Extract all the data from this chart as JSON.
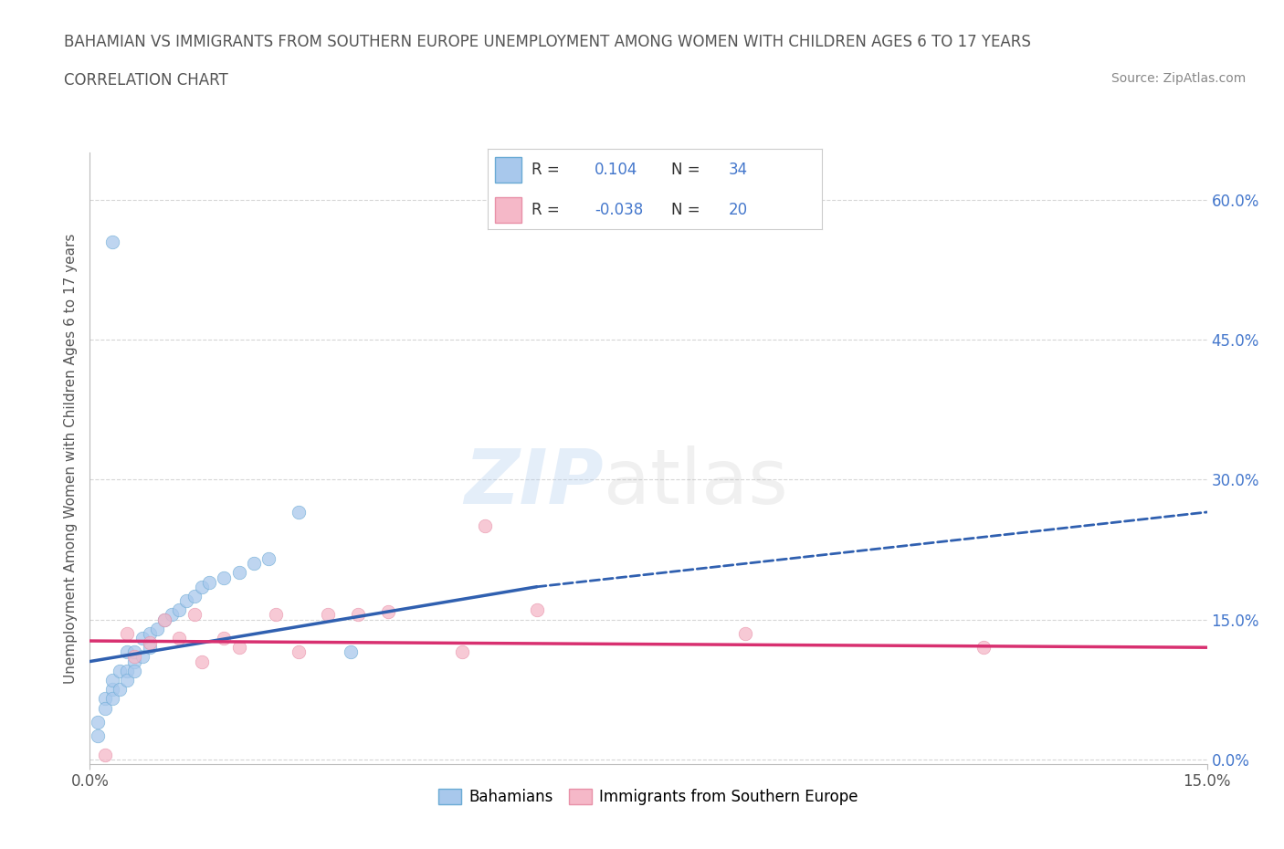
{
  "title_line1": "BAHAMIAN VS IMMIGRANTS FROM SOUTHERN EUROPE UNEMPLOYMENT AMONG WOMEN WITH CHILDREN AGES 6 TO 17 YEARS",
  "title_line2": "CORRELATION CHART",
  "source": "Source: ZipAtlas.com",
  "ylabel": "Unemployment Among Women with Children Ages 6 to 17 years",
  "xlim": [
    0.0,
    0.15
  ],
  "ylim": [
    -0.005,
    0.65
  ],
  "yticks_right": [
    0.0,
    0.15,
    0.3,
    0.45,
    0.6
  ],
  "ytick_labels_right": [
    "0.0%",
    "15.0%",
    "30.0%",
    "45.0%",
    "60.0%"
  ],
  "xtick_positions": [
    0.0,
    0.15
  ],
  "xtick_labels": [
    "0.0%",
    "15.0%"
  ],
  "watermark_zip": "ZIP",
  "watermark_atlas": "atlas",
  "blue_scatter_x": [
    0.001,
    0.001,
    0.002,
    0.002,
    0.003,
    0.003,
    0.003,
    0.004,
    0.004,
    0.005,
    0.005,
    0.005,
    0.006,
    0.006,
    0.006,
    0.007,
    0.007,
    0.008,
    0.008,
    0.009,
    0.01,
    0.011,
    0.012,
    0.013,
    0.014,
    0.015,
    0.016,
    0.018,
    0.02,
    0.022,
    0.024,
    0.028,
    0.003,
    0.035
  ],
  "blue_scatter_y": [
    0.04,
    0.025,
    0.065,
    0.055,
    0.075,
    0.085,
    0.065,
    0.095,
    0.075,
    0.115,
    0.095,
    0.085,
    0.105,
    0.115,
    0.095,
    0.13,
    0.11,
    0.135,
    0.12,
    0.14,
    0.15,
    0.155,
    0.16,
    0.17,
    0.175,
    0.185,
    0.19,
    0.195,
    0.2,
    0.21,
    0.215,
    0.265,
    0.555,
    0.115
  ],
  "pink_scatter_x": [
    0.002,
    0.005,
    0.006,
    0.008,
    0.01,
    0.012,
    0.014,
    0.015,
    0.018,
    0.02,
    0.025,
    0.028,
    0.032,
    0.036,
    0.04,
    0.05,
    0.053,
    0.06,
    0.088,
    0.12
  ],
  "pink_scatter_y": [
    0.005,
    0.135,
    0.11,
    0.125,
    0.15,
    0.13,
    0.155,
    0.105,
    0.13,
    0.12,
    0.155,
    0.115,
    0.155,
    0.155,
    0.158,
    0.115,
    0.25,
    0.16,
    0.135,
    0.12
  ],
  "blue_solid_line_x": [
    0.0,
    0.06
  ],
  "blue_solid_line_y": [
    0.105,
    0.185
  ],
  "blue_dashed_line_x": [
    0.06,
    0.15
  ],
  "blue_dashed_line_y": [
    0.185,
    0.265
  ],
  "pink_line_x": [
    0.0,
    0.15
  ],
  "pink_line_y": [
    0.127,
    0.12
  ],
  "R_blue": 0.104,
  "N_blue": 34,
  "R_pink": -0.038,
  "N_pink": 20,
  "blue_fill_color": "#A8C8EC",
  "blue_edge_color": "#6AAAD4",
  "pink_fill_color": "#F5B8C8",
  "pink_edge_color": "#E890A8",
  "blue_line_color": "#3060B0",
  "pink_line_color": "#D83070",
  "background_color": "#FFFFFF",
  "grid_color": "#CCCCCC",
  "title_color": "#555555",
  "source_color": "#888888",
  "right_tick_color": "#4477CC",
  "watermark_zip_color": "#A8C8EC",
  "watermark_atlas_color": "#BBBBBB",
  "legend_r_color": "#4477CC"
}
